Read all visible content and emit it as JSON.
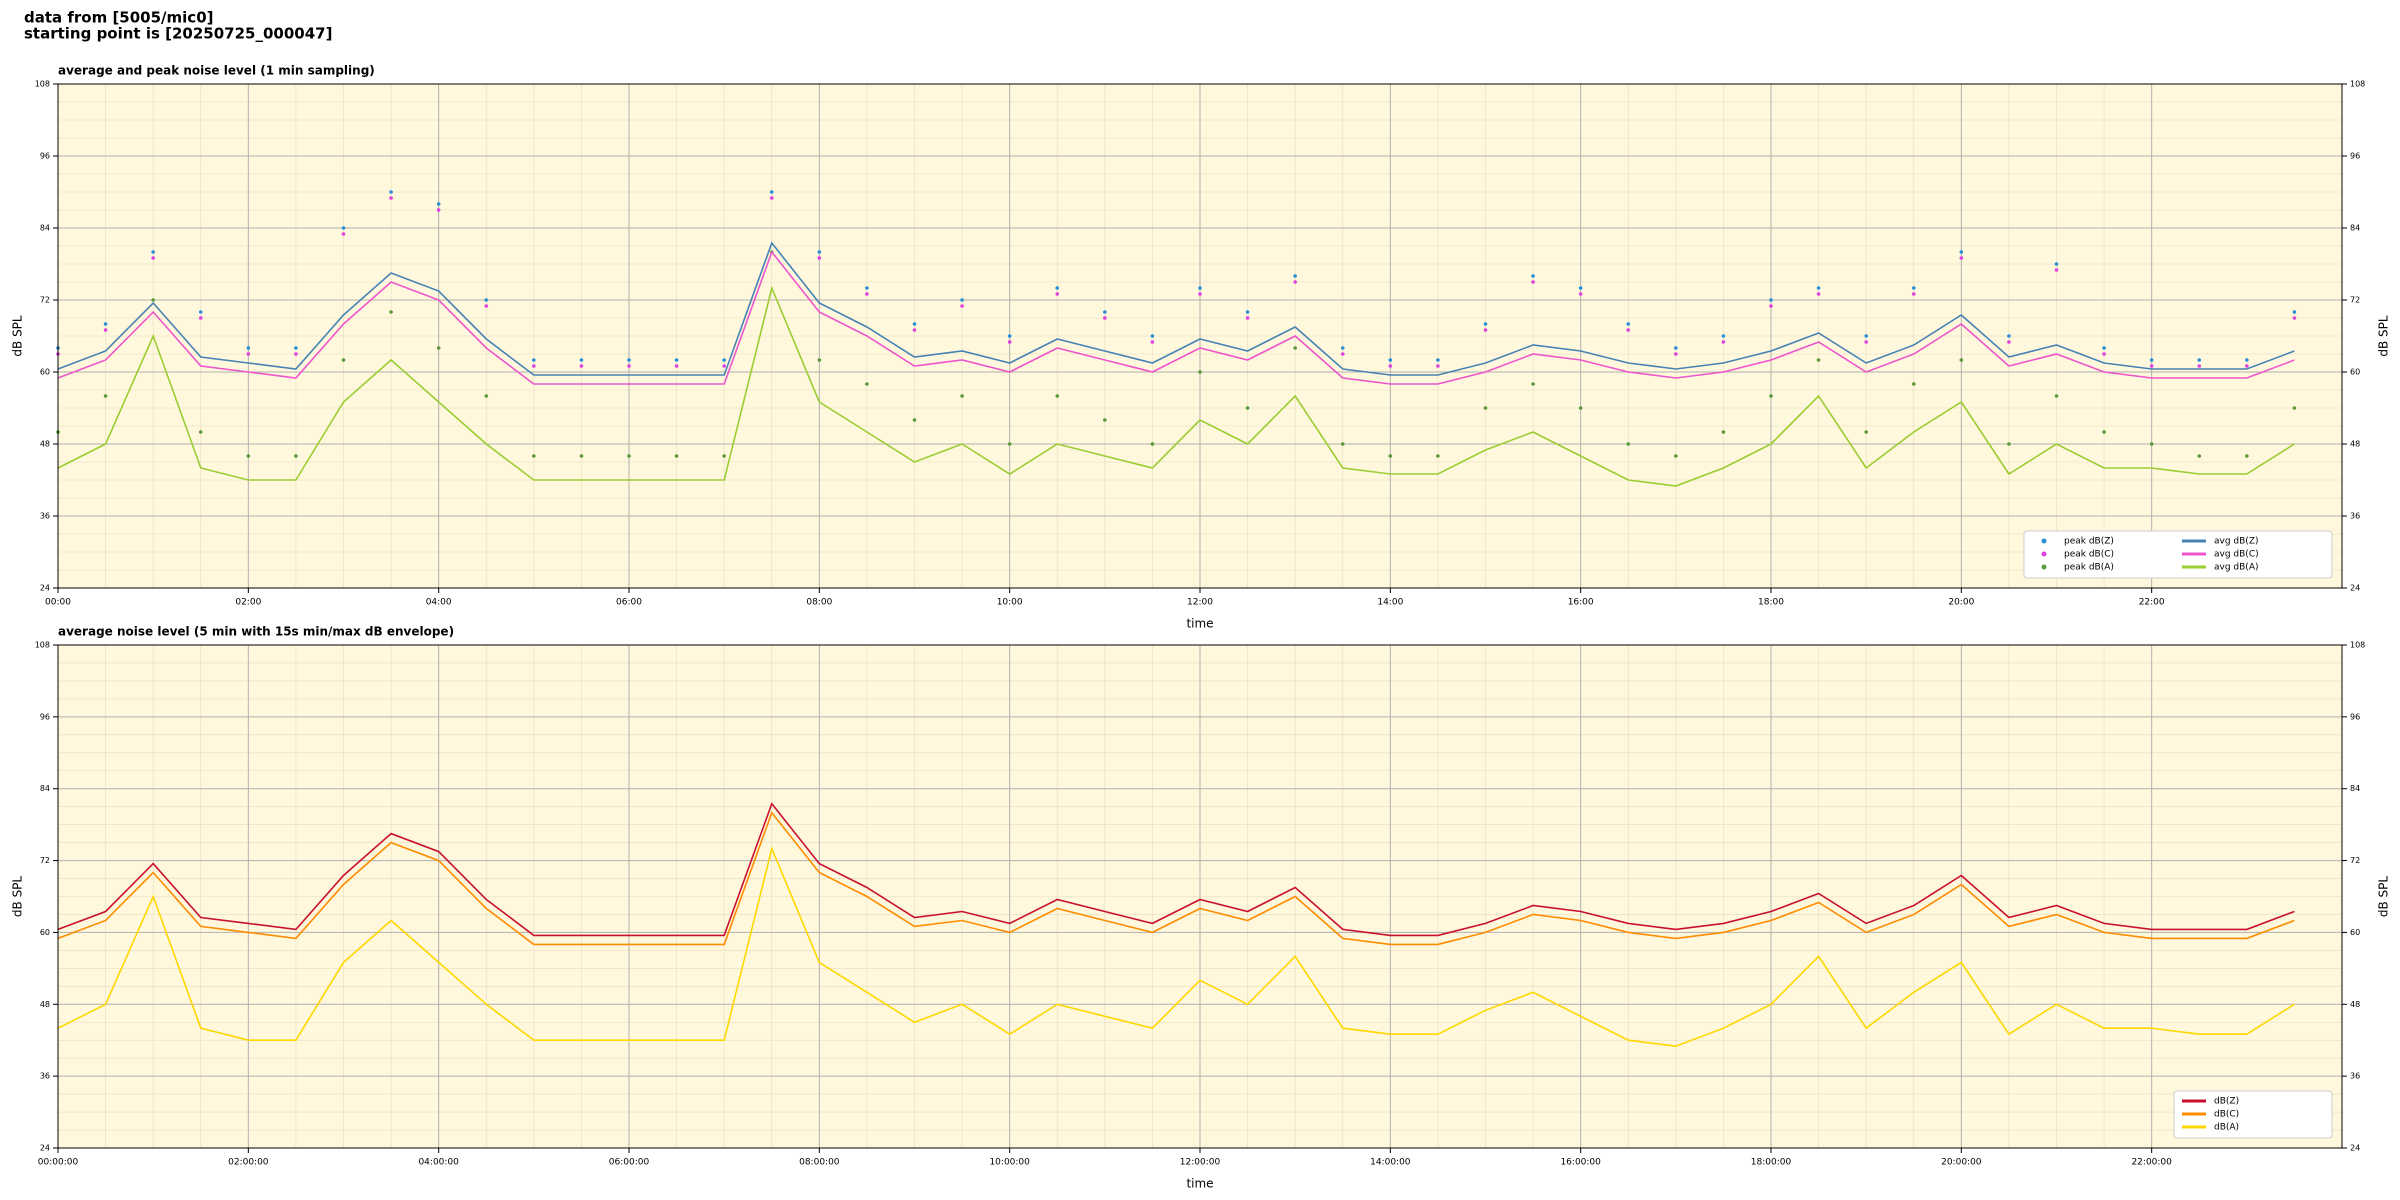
{
  "header": {
    "source": "data from [5005/mic0]",
    "start": "starting point is [20250725_000047]"
  },
  "chart_data": [
    {
      "type": "line",
      "title": "average and peak noise level (1 min sampling)",
      "x_label": "time",
      "y_label": "dB SPL",
      "x": [
        0,
        0.5,
        1,
        1.5,
        2,
        2.5,
        3,
        3.5,
        4,
        4.5,
        5,
        5.5,
        6,
        6.5,
        7,
        7.5,
        8,
        8.5,
        9,
        9.5,
        10,
        10.5,
        11,
        11.5,
        12,
        12.5,
        13,
        13.5,
        14,
        14.5,
        15,
        15.5,
        16,
        16.5,
        17,
        17.5,
        18,
        18.5,
        19,
        19.5,
        20,
        20.5,
        21,
        21.5,
        22,
        22.5,
        23,
        23.5
      ],
      "xlim": [
        0,
        24
      ],
      "ylim": [
        24,
        108
      ],
      "xticks": [
        {
          "value": 0,
          "label": "00:00"
        },
        {
          "value": 2,
          "label": "02:00"
        },
        {
          "value": 4,
          "label": "04:00"
        },
        {
          "value": 6,
          "label": "06:00"
        },
        {
          "value": 8,
          "label": "08:00"
        },
        {
          "value": 10,
          "label": "10:00"
        },
        {
          "value": 12,
          "label": "12:00"
        },
        {
          "value": 14,
          "label": "14:00"
        },
        {
          "value": 16,
          "label": "16:00"
        },
        {
          "value": 18,
          "label": "18:00"
        },
        {
          "value": 20,
          "label": "20:00"
        },
        {
          "value": 22,
          "label": "22:00"
        }
      ],
      "yticks": [
        24,
        36,
        48,
        60,
        72,
        84,
        96,
        108
      ],
      "grid": true,
      "background": "#fff8dc",
      "legend": "lower right",
      "legend_columns": 2,
      "series": [
        {
          "name": "peak dB(Z)",
          "color": "#2a8fd6",
          "marker": "dot",
          "values": [
            64,
            68,
            80,
            70,
            64,
            64,
            84,
            90,
            88,
            72,
            62,
            62,
            62,
            62,
            62,
            90,
            80,
            74,
            68,
            72,
            66,
            74,
            70,
            66,
            74,
            70,
            76,
            64,
            62,
            62,
            68,
            76,
            74,
            68,
            64,
            66,
            72,
            74,
            66,
            74,
            80,
            66,
            78,
            64,
            62,
            62,
            62,
            70
          ]
        },
        {
          "name": "peak dB(C)",
          "color": "#e040e0",
          "marker": "dot",
          "values": [
            63,
            67,
            79,
            69,
            63,
            63,
            83,
            89,
            87,
            71,
            61,
            61,
            61,
            61,
            61,
            89,
            79,
            73,
            67,
            71,
            65,
            73,
            69,
            65,
            73,
            69,
            75,
            63,
            61,
            61,
            67,
            75,
            73,
            67,
            63,
            65,
            71,
            73,
            65,
            73,
            79,
            65,
            77,
            63,
            61,
            61,
            61,
            69
          ]
        },
        {
          "name": "peak dB(A)",
          "color": "#5a9a3a",
          "marker": "dot",
          "values": [
            50,
            56,
            72,
            50,
            46,
            46,
            62,
            70,
            64,
            56,
            46,
            46,
            46,
            46,
            46,
            80,
            62,
            58,
            52,
            56,
            48,
            56,
            52,
            48,
            60,
            54,
            64,
            48,
            46,
            46,
            54,
            58,
            54,
            48,
            46,
            50,
            56,
            62,
            50,
            58,
            62,
            48,
            56,
            50,
            48,
            46,
            46,
            54
          ]
        },
        {
          "name": "avg dB(Z)",
          "color": "#4682b4",
          "marker": "line",
          "values": [
            60.5,
            63.5,
            71.5,
            62.5,
            61.5,
            60.5,
            69.5,
            76.5,
            73.5,
            65.5,
            59.5,
            59.5,
            59.5,
            59.5,
            59.5,
            81.5,
            71.5,
            67.5,
            62.5,
            63.5,
            61.5,
            65.5,
            63.5,
            61.5,
            65.5,
            63.5,
            67.5,
            60.5,
            59.5,
            59.5,
            61.5,
            64.5,
            63.5,
            61.5,
            60.5,
            61.5,
            63.5,
            66.5,
            61.5,
            64.5,
            69.5,
            62.5,
            64.5,
            61.5,
            60.5,
            60.5,
            60.5,
            63.5
          ]
        },
        {
          "name": "avg dB(C)",
          "color": "#ee55cc",
          "marker": "line",
          "values": [
            59,
            62,
            70,
            61,
            60,
            59,
            68,
            75,
            72,
            64,
            58,
            58,
            58,
            58,
            58,
            80,
            70,
            66,
            61,
            62,
            60,
            64,
            62,
            60,
            64,
            62,
            66,
            59,
            58,
            58,
            60,
            63,
            62,
            60,
            59,
            60,
            62,
            65,
            60,
            63,
            68,
            61,
            63,
            60,
            59,
            59,
            59,
            62
          ]
        },
        {
          "name": "avg dB(A)",
          "color": "#9acd32",
          "marker": "line",
          "values": [
            44,
            48,
            66,
            44,
            42,
            42,
            55,
            62,
            55,
            48,
            42,
            42,
            42,
            42,
            42,
            74,
            55,
            50,
            45,
            48,
            43,
            48,
            46,
            44,
            52,
            48,
            56,
            44,
            43,
            43,
            47,
            50,
            46,
            42,
            41,
            44,
            48,
            56,
            44,
            50,
            55,
            43,
            48,
            44,
            44,
            43,
            43,
            48
          ]
        }
      ]
    },
    {
      "type": "line",
      "title": "average noise level (5 min with 15s min/max dB envelope)",
      "x_label": "time",
      "y_label": "dB SPL",
      "x": [
        0,
        0.5,
        1,
        1.5,
        2,
        2.5,
        3,
        3.5,
        4,
        4.5,
        5,
        5.5,
        6,
        6.5,
        7,
        7.5,
        8,
        8.5,
        9,
        9.5,
        10,
        10.5,
        11,
        11.5,
        12,
        12.5,
        13,
        13.5,
        14,
        14.5,
        15,
        15.5,
        16,
        16.5,
        17,
        17.5,
        18,
        18.5,
        19,
        19.5,
        20,
        20.5,
        21,
        21.5,
        22,
        22.5,
        23,
        23.5
      ],
      "xlim": [
        0,
        24
      ],
      "ylim": [
        24,
        108
      ],
      "xticks": [
        {
          "value": 0,
          "label": "00:00:00"
        },
        {
          "value": 2,
          "label": "02:00:00"
        },
        {
          "value": 4,
          "label": "04:00:00"
        },
        {
          "value": 6,
          "label": "06:00:00"
        },
        {
          "value": 8,
          "label": "08:00:00"
        },
        {
          "value": 10,
          "label": "10:00:00"
        },
        {
          "value": 12,
          "label": "12:00:00"
        },
        {
          "value": 14,
          "label": "14:00:00"
        },
        {
          "value": 16,
          "label": "16:00:00"
        },
        {
          "value": 18,
          "label": "18:00:00"
        },
        {
          "value": 20,
          "label": "20:00:00"
        },
        {
          "value": 22,
          "label": "22:00:00"
        }
      ],
      "yticks": [
        24,
        36,
        48,
        60,
        72,
        84,
        96,
        108
      ],
      "grid": true,
      "background": "#fff8dc",
      "legend": "lower right",
      "legend_columns": 1,
      "series": [
        {
          "name": "dB(Z)",
          "color": "#c8102e",
          "marker": "line",
          "values": [
            60.5,
            63.5,
            71.5,
            62.5,
            61.5,
            60.5,
            69.5,
            76.5,
            73.5,
            65.5,
            59.5,
            59.5,
            59.5,
            59.5,
            59.5,
            81.5,
            71.5,
            67.5,
            62.5,
            63.5,
            61.5,
            65.5,
            63.5,
            61.5,
            65.5,
            63.5,
            67.5,
            60.5,
            59.5,
            59.5,
            61.5,
            64.5,
            63.5,
            61.5,
            60.5,
            61.5,
            63.5,
            66.5,
            61.5,
            64.5,
            69.5,
            62.5,
            64.5,
            61.5,
            60.5,
            60.5,
            60.5,
            63.5
          ]
        },
        {
          "name": "dB(C)",
          "color": "#ff8c00",
          "marker": "line",
          "values": [
            59,
            62,
            70,
            61,
            60,
            59,
            68,
            75,
            72,
            64,
            58,
            58,
            58,
            58,
            58,
            80,
            70,
            66,
            61,
            62,
            60,
            64,
            62,
            60,
            64,
            62,
            66,
            59,
            58,
            58,
            60,
            63,
            62,
            60,
            59,
            60,
            62,
            65,
            60,
            63,
            68,
            61,
            63,
            60,
            59,
            59,
            59,
            62
          ]
        },
        {
          "name": "dB(A)",
          "color": "#ffd700",
          "marker": "line",
          "values": [
            44,
            48,
            66,
            44,
            42,
            42,
            55,
            62,
            55,
            48,
            42,
            42,
            42,
            42,
            42,
            74,
            55,
            50,
            45,
            48,
            43,
            48,
            46,
            44,
            52,
            48,
            56,
            44,
            43,
            43,
            47,
            50,
            46,
            42,
            41,
            44,
            48,
            56,
            44,
            50,
            55,
            43,
            48,
            44,
            44,
            43,
            43,
            48
          ]
        }
      ]
    }
  ]
}
